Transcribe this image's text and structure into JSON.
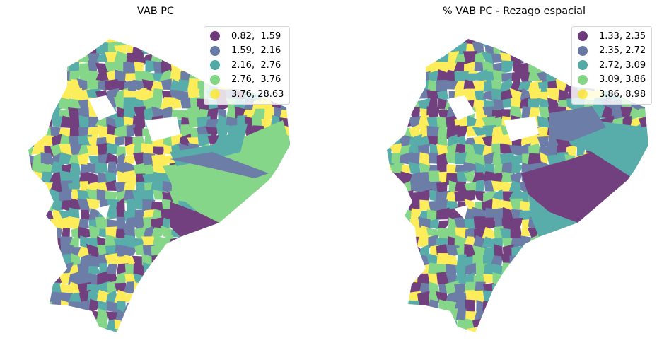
{
  "colors": [
    "#440154",
    "#3b528b",
    "#21918c",
    "#5ec962",
    "#fde725"
  ],
  "opacity": 0.75,
  "panels": [
    {
      "title": "VAB PC",
      "legend": [
        "0.82,  1.59",
        "1.59,  2.16",
        "2.16,  2.76",
        "2.76,  3.76",
        "3.76, 28.63"
      ]
    },
    {
      "title": "% VAB PC - Rezago espacial",
      "legend": [
        "1.33, 2.35",
        "2.35, 2.72",
        "2.72, 3.09",
        "3.09, 3.86",
        "3.86, 8.98"
      ]
    }
  ]
}
